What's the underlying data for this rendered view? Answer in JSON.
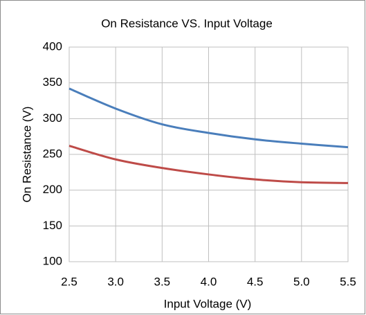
{
  "chart_data": {
    "type": "line",
    "title": "On Resistance VS. Input Voltage",
    "x_label": "Input Voltage (V)",
    "y_label": "On Resistance (V)",
    "x": [
      2.5,
      3,
      3.5,
      4,
      4.5,
      5,
      5.5
    ],
    "series": [
      {
        "color": "#4a7ebb",
        "values": [
          342,
          314,
          292,
          280,
          271,
          265,
          260
        ]
      },
      {
        "color": "#be4b48",
        "values": [
          262,
          243,
          231,
          222,
          215,
          211,
          210
        ]
      }
    ],
    "xlim": [
      2.5,
      5.5
    ],
    "xticks": [
      2.5,
      {
        "value": 3,
        "label": "3.0"
      },
      3.5,
      {
        "value": 4,
        "label": "4.0"
      },
      4.5,
      {
        "value": 5,
        "label": "5.0"
      },
      5.5
    ],
    "ylim": [
      100,
      400
    ],
    "yticks": [
      100,
      150,
      200,
      250,
      300,
      350,
      400
    ],
    "grid": true
  }
}
